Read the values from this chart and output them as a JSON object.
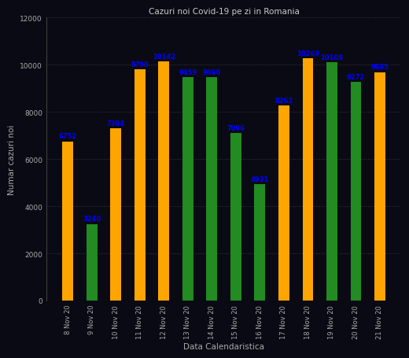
{
  "title": "Cazuri noi Covid-19 pe zi in Romania",
  "xlabel": "Data Calendaristica",
  "ylabel": "Numar cazuri noi",
  "categories": [
    "8 Nov 20",
    "9 Nov 20",
    "10 Nov 20",
    "11 Nov 20",
    "12 Nov 20",
    "13 Nov 20",
    "14 Nov 20",
    "15 Nov 20",
    "16 Nov 20",
    "17 Nov 20",
    "18 Nov 20",
    "19 Nov 20",
    "20 Nov 20",
    "21 Nov 20"
  ],
  "values": [
    6752,
    3240,
    7304,
    9799,
    10142,
    9459,
    9460,
    7096,
    4931,
    8262,
    10269,
    10108,
    9272,
    9685
  ],
  "colors": [
    "#FFA500",
    "#228B22",
    "#FFA500",
    "#FFA500",
    "#FFA500",
    "#228B22",
    "#228B22",
    "#228B22",
    "#228B22",
    "#FFA500",
    "#FFA500",
    "#228B22",
    "#228B22",
    "#FFA500"
  ],
  "ylim": [
    0,
    12000
  ],
  "yticks": [
    0,
    2000,
    4000,
    6000,
    8000,
    10000,
    12000
  ],
  "background_color": "#0a0a14",
  "axes_bg_color": "#0a0a14",
  "tick_color": "#aaaaaa",
  "grid_color": "#555555",
  "label_color": "#0000FF",
  "title_color": "#cccccc",
  "xlabel_color": "#aaaaaa",
  "ylabel_color": "#aaaaaa",
  "bar_width": 0.45,
  "title_fontsize": 7.5,
  "label_fontsize": 6.5,
  "tick_fontsize": 6,
  "axis_label_fontsize": 7.5,
  "value_label_fontsize": 6
}
